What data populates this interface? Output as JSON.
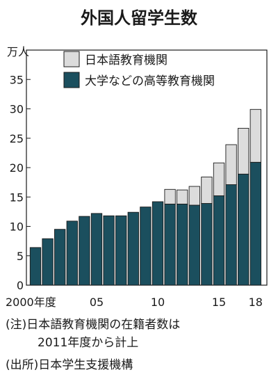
{
  "chart_data": {
    "type": "bar",
    "stacked": true,
    "title": "外国人留学生数",
    "unit_label": "万人",
    "categories": [
      "2000",
      "2001",
      "2002",
      "2003",
      "2004",
      "2005",
      "2006",
      "2007",
      "2008",
      "2009",
      "2010",
      "2011",
      "2012",
      "2013",
      "2014",
      "2015",
      "2016",
      "2017",
      "2018"
    ],
    "x_tick_labels": [
      {
        "category": "2000",
        "label": "2000年度"
      },
      {
        "category": "2005",
        "label": "05"
      },
      {
        "category": "2010",
        "label": "10"
      },
      {
        "category": "2015",
        "label": "15"
      },
      {
        "category": "2018",
        "label": "18"
      }
    ],
    "series": [
      {
        "name": "大学などの高等教育機関",
        "color": "#1b4f5e",
        "values": [
          6.4,
          7.9,
          9.5,
          10.9,
          11.7,
          12.2,
          11.8,
          11.8,
          12.4,
          13.3,
          14.2,
          13.8,
          13.8,
          13.6,
          13.9,
          15.2,
          17.1,
          18.9,
          20.9
        ]
      },
      {
        "name": "日本語教育機関",
        "color": "#dcdcdc",
        "values": [
          0,
          0,
          0,
          0,
          0,
          0,
          0,
          0,
          0,
          0,
          0,
          2.5,
          2.4,
          3.2,
          4.5,
          5.6,
          6.8,
          7.8,
          9.0
        ]
      }
    ],
    "ylim": [
      0,
      40
    ],
    "yticks": [
      0,
      5,
      10,
      15,
      20,
      25,
      30,
      35
    ],
    "legend_position": "top-left",
    "grid": false
  },
  "notes": {
    "line1": "(注)日本語教育機関の在籍者数は",
    "line2": "2011年度から計上"
  },
  "source": "(出所)日本学生支援機構"
}
